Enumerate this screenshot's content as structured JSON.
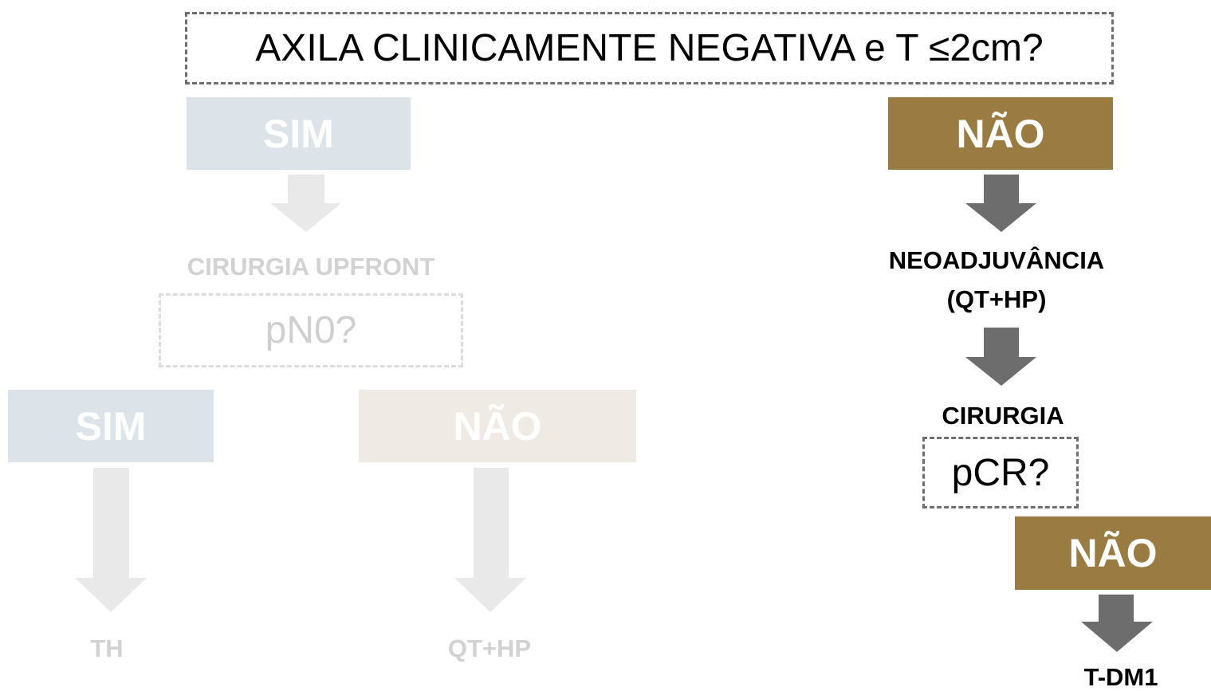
{
  "title": "AXILA CLINICAMENTE NEGATIVA e T ≤2cm?",
  "left_branch": {
    "answer": "SIM",
    "step": "CIRURGIA UPFRONT",
    "question": "pN0?",
    "yes": {
      "answer": "SIM",
      "treatment": "TH"
    },
    "no": {
      "answer": "NÃO",
      "treatment": "QT+HP"
    }
  },
  "right_branch": {
    "answer": "NÃO",
    "step": [
      "NEOADJUVÂNCIA",
      "(QT+HP)"
    ],
    "surgery": "CIRURGIA",
    "question": "pCR?",
    "no": {
      "answer": "NÃO",
      "treatment": "T-DM1"
    }
  }
}
